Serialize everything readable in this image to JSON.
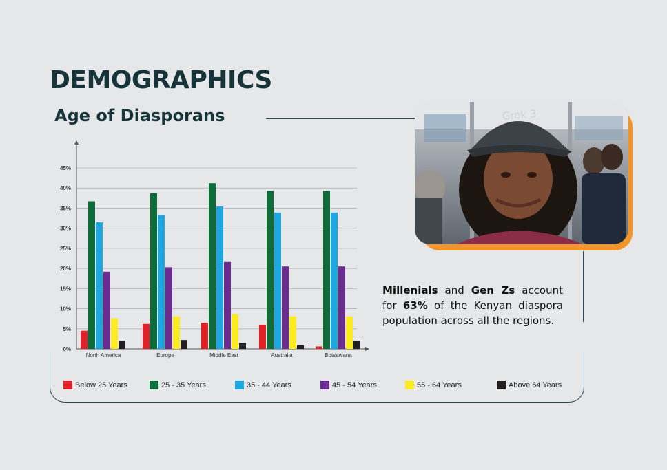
{
  "heading": "DEMOGRAPHICS",
  "subheading": "Age of Diasporans",
  "caption": {
    "b1": "Millenials",
    "t1": " and ",
    "b2": "Gen Zs",
    "t2": " account for ",
    "b3": "63%",
    "t3": " of the Kenyan diaspora population across all the regions."
  },
  "photo": {
    "cap_text": "Grok 3"
  },
  "chart_data": {
    "type": "bar",
    "categories": [
      "North America",
      "Europe",
      "Middle East",
      "Australia",
      "Botsawana"
    ],
    "ylim": [
      0,
      45
    ],
    "yticks": [
      0,
      5,
      10,
      15,
      20,
      25,
      30,
      35,
      40,
      45
    ],
    "ytick_labels": [
      "0%",
      "5%",
      "10%",
      "15%",
      "20%",
      "25%",
      "30%",
      "35%",
      "40%",
      "45%"
    ],
    "grid": true,
    "legend_position": "bottom",
    "series": [
      {
        "name": "Below 25 Years",
        "color": "#e02127",
        "values": [
          4.5,
          6.2,
          6.5,
          6.0,
          0.6
        ]
      },
      {
        "name": "25 - 35 Years",
        "color": "#0e6b3a",
        "values": [
          36.7,
          38.7,
          41.2,
          39.3,
          39.3
        ]
      },
      {
        "name": "35 - 44 Years",
        "color": "#1fa8e0",
        "values": [
          31.5,
          33.3,
          35.4,
          33.9,
          33.9
        ]
      },
      {
        "name": "45 - 54 Years",
        "color": "#6a2c91",
        "values": [
          19.2,
          20.3,
          21.6,
          20.5,
          20.5
        ]
      },
      {
        "name": "55 - 64 Years",
        "color": "#fbec1f",
        "values": [
          7.6,
          8.1,
          8.6,
          8.1,
          8.1
        ]
      },
      {
        "name": "Above  64 Years",
        "color": "#231f20",
        "values": [
          2.0,
          2.2,
          1.5,
          0.9,
          2.0
        ]
      }
    ]
  }
}
